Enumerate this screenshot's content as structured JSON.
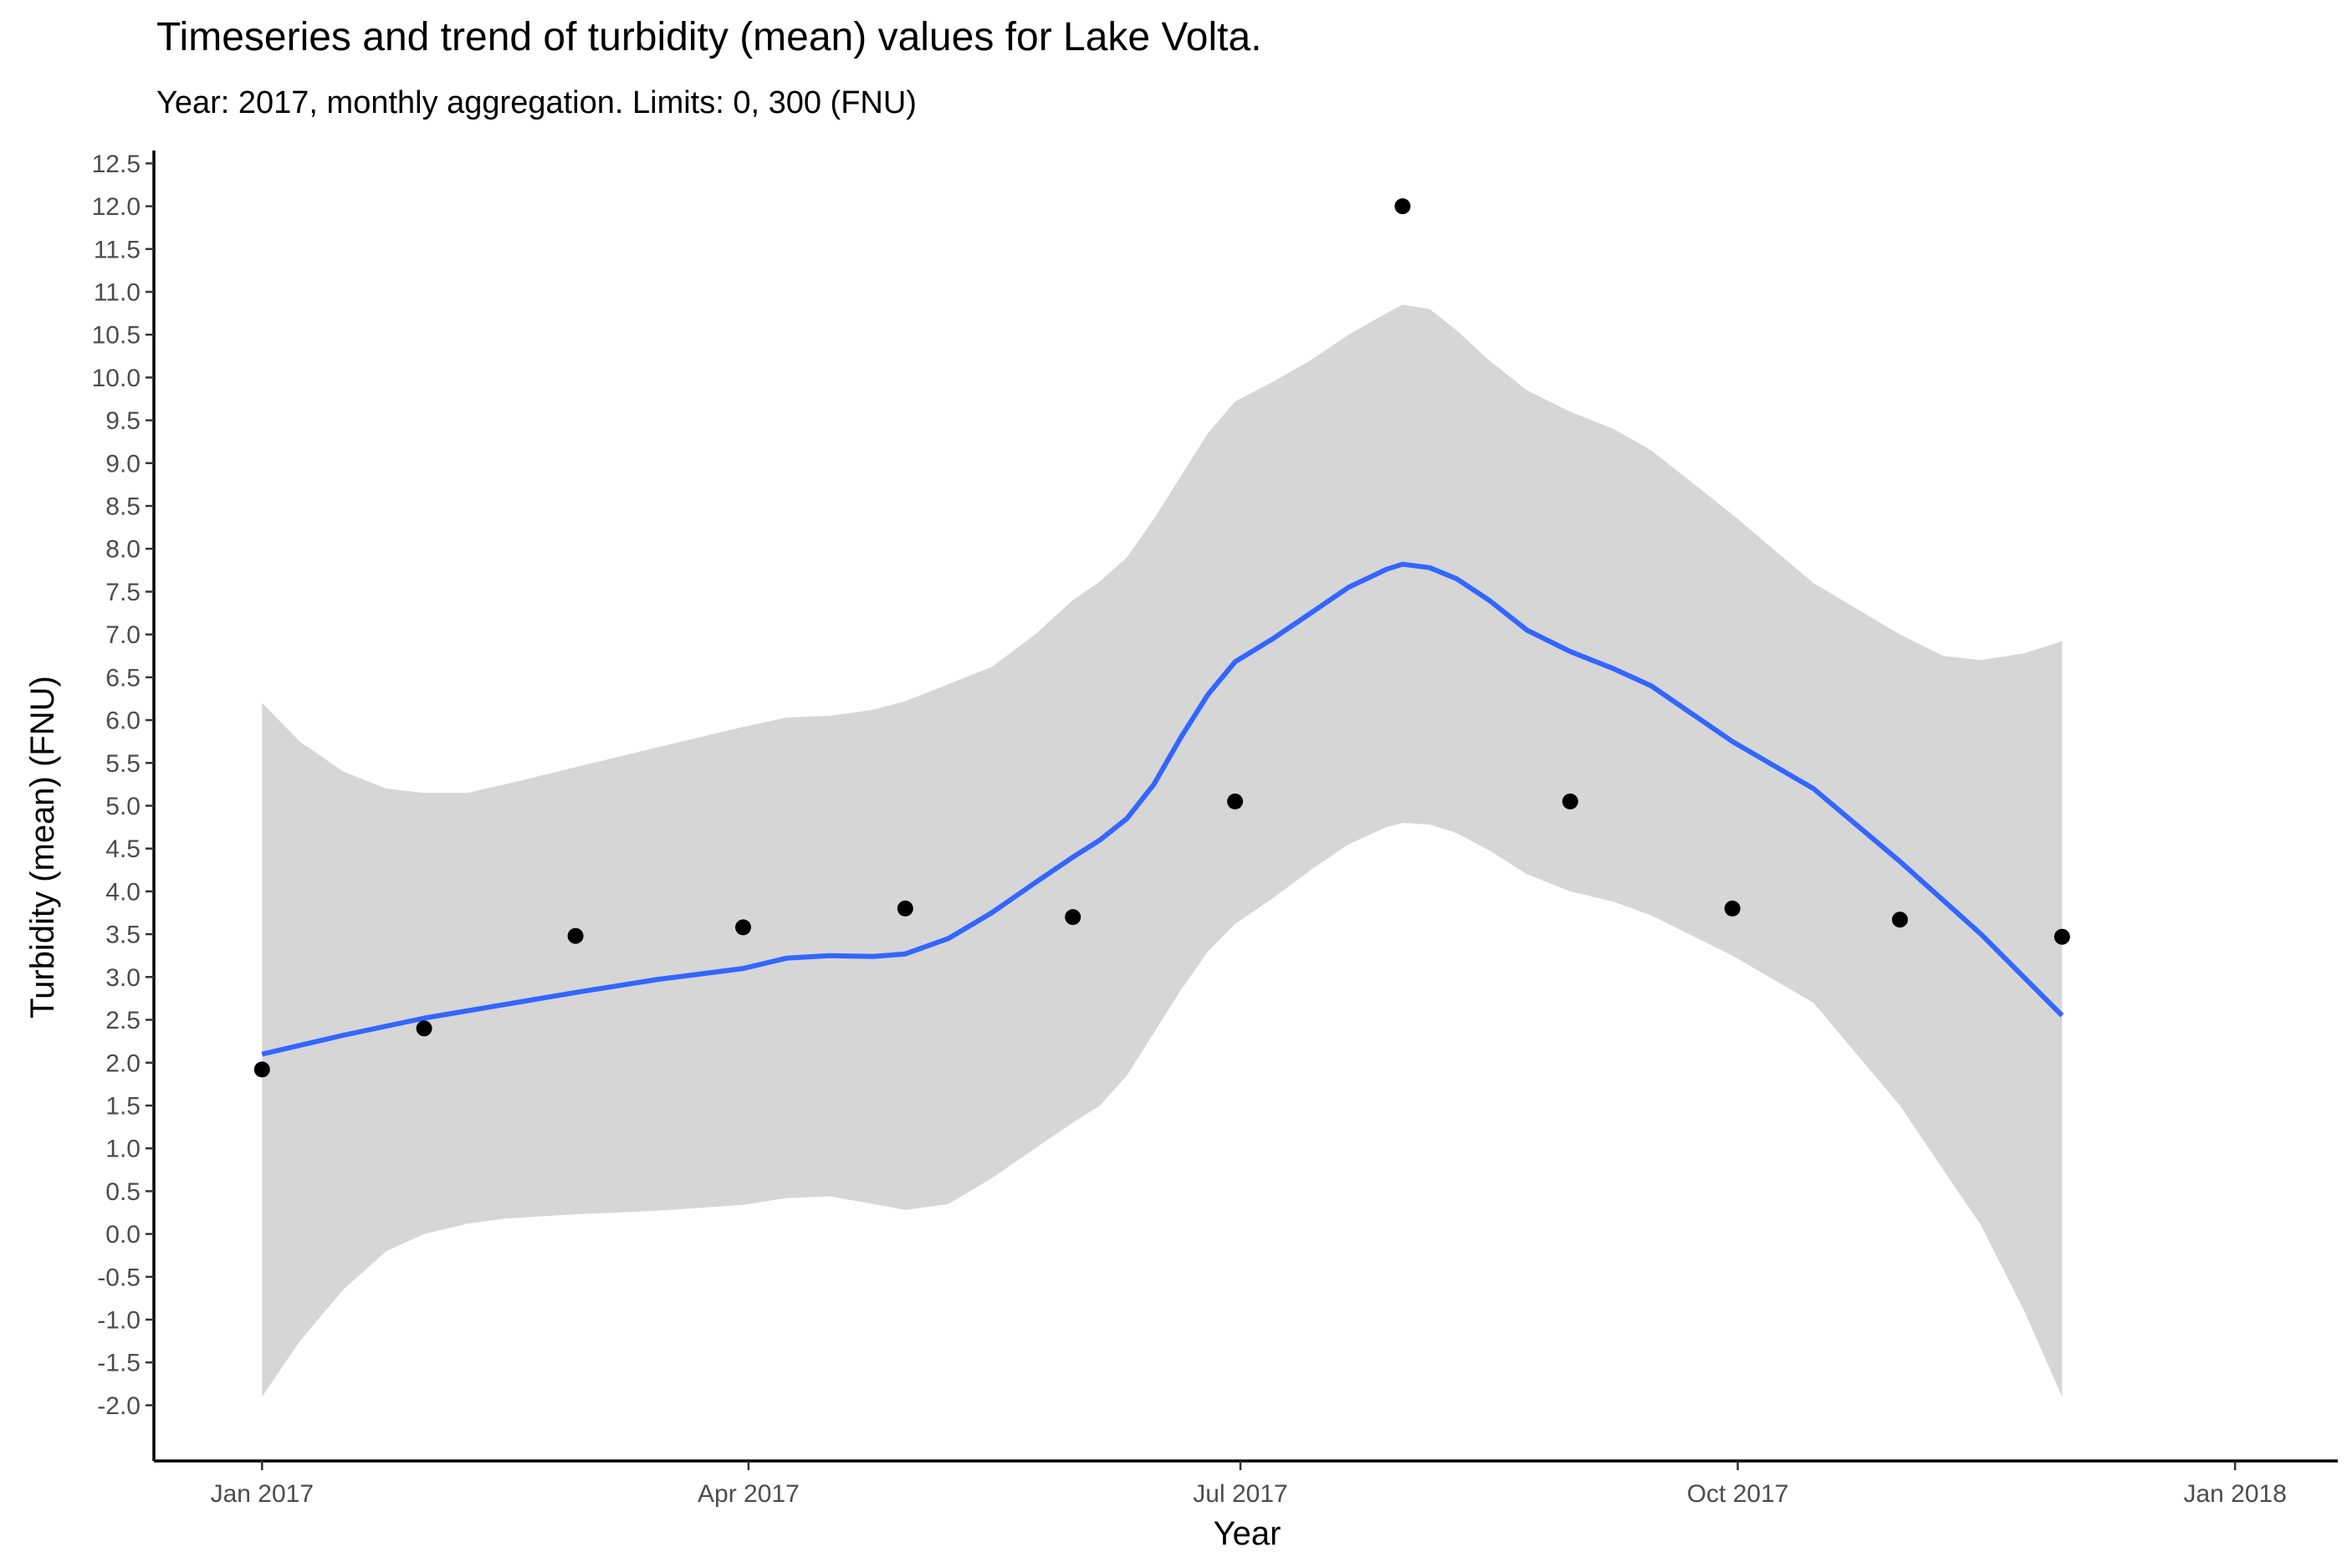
{
  "chart_data": {
    "type": "scatter",
    "title": "Timeseries and trend of turbidity (mean) values for Lake Volta.",
    "subtitle": "Year: 2017, monthly aggregation. Limits: 0, 300 (FNU)",
    "xlabel": "Year",
    "ylabel": "Turbidity (mean) (FNU)",
    "x_range": [
      "2016-12-12",
      "2018-01-20"
    ],
    "ylim": [
      -2.65,
      12.65
    ],
    "x_ticks": [
      {
        "date": "2017-01-01",
        "label": "Jan 2017"
      },
      {
        "date": "2017-04-01",
        "label": "Apr 2017"
      },
      {
        "date": "2017-07-01",
        "label": "Jul 2017"
      },
      {
        "date": "2017-10-01",
        "label": "Oct 2017"
      },
      {
        "date": "2018-01-01",
        "label": "Jan 2018"
      }
    ],
    "y_ticks": [
      -2.0,
      -1.5,
      -1.0,
      -0.5,
      0.0,
      0.5,
      1.0,
      1.5,
      2.0,
      2.5,
      3.0,
      3.5,
      4.0,
      4.5,
      5.0,
      5.5,
      6.0,
      6.5,
      7.0,
      7.5,
      8.0,
      8.5,
      9.0,
      9.5,
      10.0,
      10.5,
      11.0,
      11.5,
      12.0,
      12.5
    ],
    "grid": false,
    "legend": "none",
    "colors": {
      "points": "#000000",
      "trend": "#3366FF",
      "ribbon": "#d6d6d6"
    },
    "series": [
      {
        "role": "points",
        "points": [
          {
            "x": "2017-01-01",
            "y": 1.92
          },
          {
            "x": "2017-01-31",
            "y": 2.4
          },
          {
            "x": "2017-02-28",
            "y": 3.48
          },
          {
            "x": "2017-03-31",
            "y": 3.58
          },
          {
            "x": "2017-04-30",
            "y": 3.8
          },
          {
            "x": "2017-05-31",
            "y": 3.7
          },
          {
            "x": "2017-06-30",
            "y": 5.05
          },
          {
            "x": "2017-07-31",
            "y": 12.0
          },
          {
            "x": "2017-08-31",
            "y": 5.05
          },
          {
            "x": "2017-09-30",
            "y": 3.8
          },
          {
            "x": "2017-10-31",
            "y": 3.67
          },
          {
            "x": "2017-11-30",
            "y": 3.47
          }
        ]
      },
      {
        "role": "trend",
        "points": [
          {
            "x": "2017-01-01",
            "y": 2.1
          },
          {
            "x": "2017-01-16",
            "y": 2.32
          },
          {
            "x": "2017-01-31",
            "y": 2.52
          },
          {
            "x": "2017-02-15",
            "y": 2.68
          },
          {
            "x": "2017-02-28",
            "y": 2.82
          },
          {
            "x": "2017-03-15",
            "y": 2.97
          },
          {
            "x": "2017-03-31",
            "y": 3.1
          },
          {
            "x": "2017-04-08",
            "y": 3.22
          },
          {
            "x": "2017-04-16",
            "y": 3.25
          },
          {
            "x": "2017-04-24",
            "y": 3.24
          },
          {
            "x": "2017-04-30",
            "y": 3.27
          },
          {
            "x": "2017-05-08",
            "y": 3.45
          },
          {
            "x": "2017-05-16",
            "y": 3.75
          },
          {
            "x": "2017-05-24",
            "y": 4.1
          },
          {
            "x": "2017-05-31",
            "y": 4.4
          },
          {
            "x": "2017-06-05",
            "y": 4.6
          },
          {
            "x": "2017-06-10",
            "y": 4.85
          },
          {
            "x": "2017-06-15",
            "y": 5.25
          },
          {
            "x": "2017-06-20",
            "y": 5.8
          },
          {
            "x": "2017-06-25",
            "y": 6.3
          },
          {
            "x": "2017-06-30",
            "y": 6.68
          },
          {
            "x": "2017-07-07",
            "y": 6.95
          },
          {
            "x": "2017-07-14",
            "y": 7.25
          },
          {
            "x": "2017-07-21",
            "y": 7.55
          },
          {
            "x": "2017-07-28",
            "y": 7.76
          },
          {
            "x": "2017-07-31",
            "y": 7.82
          },
          {
            "x": "2017-08-05",
            "y": 7.78
          },
          {
            "x": "2017-08-10",
            "y": 7.65
          },
          {
            "x": "2017-08-16",
            "y": 7.4
          },
          {
            "x": "2017-08-23",
            "y": 7.05
          },
          {
            "x": "2017-08-31",
            "y": 6.8
          },
          {
            "x": "2017-09-08",
            "y": 6.6
          },
          {
            "x": "2017-09-15",
            "y": 6.4
          },
          {
            "x": "2017-09-30",
            "y": 5.75
          },
          {
            "x": "2017-10-15",
            "y": 5.2
          },
          {
            "x": "2017-10-31",
            "y": 4.35
          },
          {
            "x": "2017-11-15",
            "y": 3.5
          },
          {
            "x": "2017-11-30",
            "y": 2.55
          }
        ]
      },
      {
        "role": "confidence-band",
        "points": [
          {
            "x": "2017-01-01",
            "upper": 6.2,
            "lower": -1.9
          },
          {
            "x": "2017-01-08",
            "upper": 5.75,
            "lower": -1.25
          },
          {
            "x": "2017-01-16",
            "upper": 5.4,
            "lower": -0.65
          },
          {
            "x": "2017-01-24",
            "upper": 5.2,
            "lower": -0.2
          },
          {
            "x": "2017-01-31",
            "upper": 5.15,
            "lower": 0.0
          },
          {
            "x": "2017-02-08",
            "upper": 5.15,
            "lower": 0.12
          },
          {
            "x": "2017-02-15",
            "upper": 5.25,
            "lower": 0.18
          },
          {
            "x": "2017-02-28",
            "upper": 5.45,
            "lower": 0.23
          },
          {
            "x": "2017-03-15",
            "upper": 5.68,
            "lower": 0.27
          },
          {
            "x": "2017-03-31",
            "upper": 5.92,
            "lower": 0.34
          },
          {
            "x": "2017-04-08",
            "upper": 6.03,
            "lower": 0.42
          },
          {
            "x": "2017-04-16",
            "upper": 6.05,
            "lower": 0.44
          },
          {
            "x": "2017-04-24",
            "upper": 6.12,
            "lower": 0.35
          },
          {
            "x": "2017-04-30",
            "upper": 6.22,
            "lower": 0.28
          },
          {
            "x": "2017-05-08",
            "upper": 6.42,
            "lower": 0.35
          },
          {
            "x": "2017-05-16",
            "upper": 6.62,
            "lower": 0.65
          },
          {
            "x": "2017-05-24",
            "upper": 7.0,
            "lower": 1.0
          },
          {
            "x": "2017-05-31",
            "upper": 7.4,
            "lower": 1.3
          },
          {
            "x": "2017-06-05",
            "upper": 7.62,
            "lower": 1.5
          },
          {
            "x": "2017-06-10",
            "upper": 7.9,
            "lower": 1.85
          },
          {
            "x": "2017-06-15",
            "upper": 8.35,
            "lower": 2.35
          },
          {
            "x": "2017-06-20",
            "upper": 8.85,
            "lower": 2.85
          },
          {
            "x": "2017-06-25",
            "upper": 9.35,
            "lower": 3.3
          },
          {
            "x": "2017-06-30",
            "upper": 9.72,
            "lower": 3.62
          },
          {
            "x": "2017-07-07",
            "upper": 9.95,
            "lower": 3.92
          },
          {
            "x": "2017-07-14",
            "upper": 10.2,
            "lower": 4.25
          },
          {
            "x": "2017-07-21",
            "upper": 10.5,
            "lower": 4.55
          },
          {
            "x": "2017-07-28",
            "upper": 10.75,
            "lower": 4.75
          },
          {
            "x": "2017-07-31",
            "upper": 10.85,
            "lower": 4.8
          },
          {
            "x": "2017-08-05",
            "upper": 10.8,
            "lower": 4.78
          },
          {
            "x": "2017-08-10",
            "upper": 10.55,
            "lower": 4.68
          },
          {
            "x": "2017-08-16",
            "upper": 10.2,
            "lower": 4.48
          },
          {
            "x": "2017-08-23",
            "upper": 9.85,
            "lower": 4.2
          },
          {
            "x": "2017-08-31",
            "upper": 9.6,
            "lower": 4.0
          },
          {
            "x": "2017-09-08",
            "upper": 9.4,
            "lower": 3.88
          },
          {
            "x": "2017-09-15",
            "upper": 9.15,
            "lower": 3.72
          },
          {
            "x": "2017-09-30",
            "upper": 8.4,
            "lower": 3.25
          },
          {
            "x": "2017-10-15",
            "upper": 7.6,
            "lower": 2.7
          },
          {
            "x": "2017-10-31",
            "upper": 7.0,
            "lower": 1.5
          },
          {
            "x": "2017-11-08",
            "upper": 6.75,
            "lower": 0.75
          },
          {
            "x": "2017-11-15",
            "upper": 6.7,
            "lower": 0.1
          },
          {
            "x": "2017-11-23",
            "upper": 6.78,
            "lower": -0.9
          },
          {
            "x": "2017-11-30",
            "upper": 6.92,
            "lower": -1.9
          }
        ]
      }
    ]
  }
}
